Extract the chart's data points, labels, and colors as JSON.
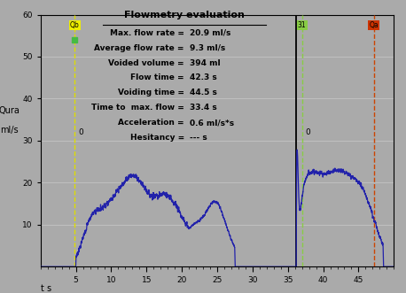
{
  "bg_color": "#aaaaaa",
  "plot_bg_color": "#aaaaaa",
  "flow_color": "#2222aa",
  "ylim": [
    0,
    60
  ],
  "xlim": [
    0,
    50
  ],
  "yticks": [
    10,
    20,
    30,
    40,
    50,
    60
  ],
  "xticks": [
    5,
    10,
    15,
    20,
    25,
    30,
    35,
    40,
    45
  ],
  "xlabel": "t s",
  "ylabel_line1": "Qura",
  "ylabel_line2": "ml/s",
  "title_box": "Flowmetry evaluation",
  "stats": [
    [
      "Max. flow rate =",
      "20.9 ml/s"
    ],
    [
      "Average flow rate =",
      "9.3 ml/s"
    ],
    [
      "Voided volume =",
      "394 ml"
    ],
    [
      "Flow time =",
      "42.3 s"
    ],
    [
      "Voiding time =",
      "44.5 s"
    ],
    [
      "Time to  max. flow =",
      "33.4 s"
    ],
    [
      "Acceleration =",
      "0.6 ml/s*s"
    ],
    [
      "Hesitancy =",
      "--- s"
    ]
  ],
  "vline_yellow_x": 4.8,
  "vline_black_x": 36.2,
  "vline_green_x": 37.0,
  "vline_orange_x": 47.2
}
